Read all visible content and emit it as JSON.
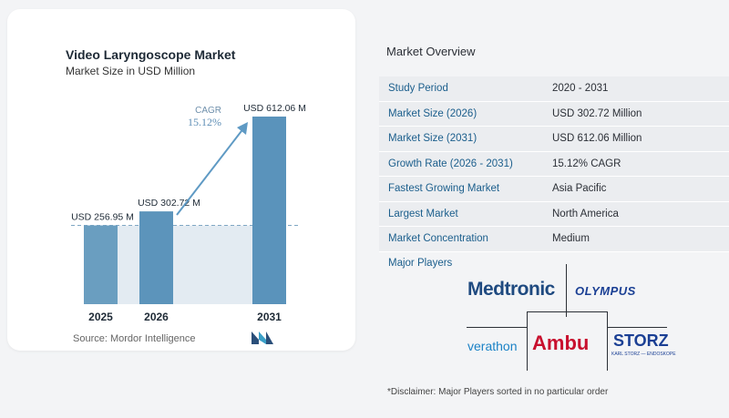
{
  "chart_data": {
    "type": "bar",
    "title": "Video Laryngoscope Market",
    "subtitle": "Market Size in USD Million",
    "categories": [
      "2025",
      "2026",
      "2031"
    ],
    "values": [
      256.95,
      302.72,
      612.06
    ],
    "value_labels": [
      "USD 256.95 M",
      "USD 302.72 M",
      "USD 612.06 M"
    ],
    "annotation": {
      "label": "CAGR",
      "value": "15.12%"
    },
    "baseline_value": 256.95,
    "ylim": [
      0,
      640
    ],
    "grid": false,
    "bar_colors": [
      "#6a9ec0",
      "#5c94bb",
      "#5a93bb"
    ]
  },
  "source": "Source:  Mordor Intelligence",
  "overview": {
    "title": "Market Overview",
    "rows": [
      {
        "key": "Study Period",
        "value": "2020 - 2031"
      },
      {
        "key": "Market Size (2026)",
        "value": "USD 302.72 Million"
      },
      {
        "key": "Market Size (2031)",
        "value": "USD 612.06 Million"
      },
      {
        "key": "Growth Rate (2026 - 2031)",
        "value": "15.12% CAGR"
      },
      {
        "key": "Fastest Growing Market",
        "value": "Asia Pacific"
      },
      {
        "key": "Largest Market",
        "value": "North America"
      },
      {
        "key": "Market Concentration",
        "value": "Medium"
      }
    ]
  },
  "players": {
    "title": "Major Players",
    "logos": [
      "Medtronic",
      "OLYMPUS",
      "verathon",
      "Ambu",
      "STORZ"
    ],
    "storz_sub": "KARL STORZ — ENDOSKOPE"
  },
  "disclaimer": "*Disclaimer: Major Players sorted in no particular order",
  "colors": {
    "accent": "#1b5e8c",
    "row_bg": "#ebedf0",
    "arrow": "#5f9ac4"
  }
}
